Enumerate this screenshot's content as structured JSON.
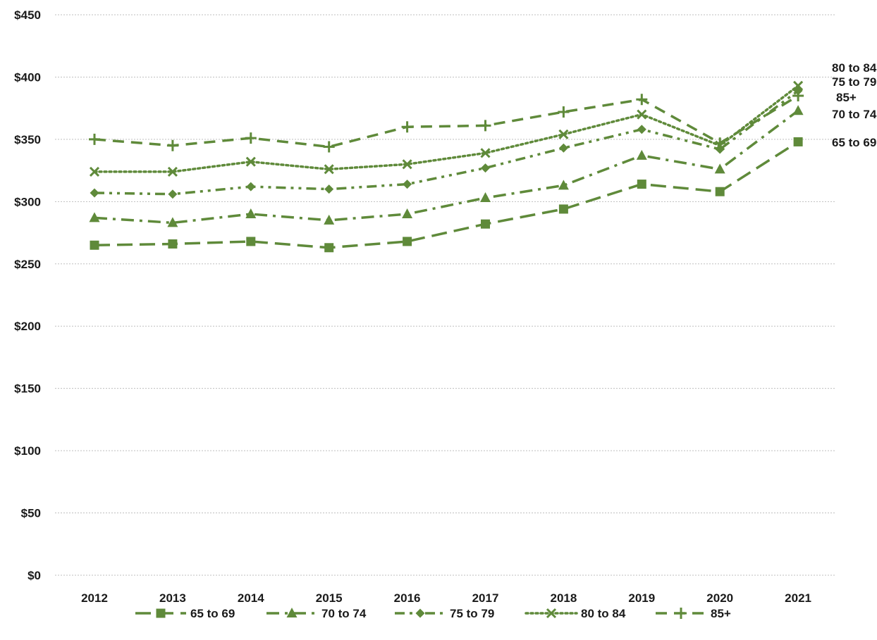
{
  "chart_data": {
    "type": "line",
    "title": "",
    "xlabel": "",
    "ylabel": "",
    "categories": [
      "2012",
      "2013",
      "2014",
      "2015",
      "2016",
      "2017",
      "2018",
      "2019",
      "2020",
      "2021"
    ],
    "ylim": [
      0,
      450
    ],
    "yticks": [
      0,
      50,
      100,
      150,
      200,
      250,
      300,
      350,
      400,
      450
    ],
    "ytick_labels": [
      "$0",
      "$50",
      "$100",
      "$150",
      "$200",
      "$250",
      "$300",
      "$350",
      "$400",
      "$450"
    ],
    "grid": "horizontal dotted",
    "legend_position": "bottom",
    "line_color": "#5f8a3a",
    "series": [
      {
        "name": "65 to 69",
        "marker": "square",
        "dash": "long-dash",
        "values": [
          265,
          266,
          268,
          263,
          268,
          282,
          294,
          314,
          308,
          348
        ]
      },
      {
        "name": "70 to 74",
        "marker": "triangle",
        "dash": "dash-dot",
        "values": [
          287,
          283,
          290,
          285,
          290,
          303,
          313,
          337,
          326,
          373
        ]
      },
      {
        "name": "75 to 79",
        "marker": "diamond",
        "dash": "dash-dot-dot",
        "values": [
          307,
          306,
          312,
          310,
          314,
          327,
          343,
          358,
          342,
          389
        ]
      },
      {
        "name": "80 to 84",
        "marker": "x",
        "dash": "dotted",
        "values": [
          324,
          324,
          332,
          326,
          330,
          339,
          354,
          370,
          345,
          393
        ]
      },
      {
        "name": "85+",
        "marker": "plus",
        "dash": "dash",
        "values": [
          350,
          345,
          351,
          344,
          360,
          361,
          372,
          382,
          347,
          385
        ]
      }
    ]
  }
}
